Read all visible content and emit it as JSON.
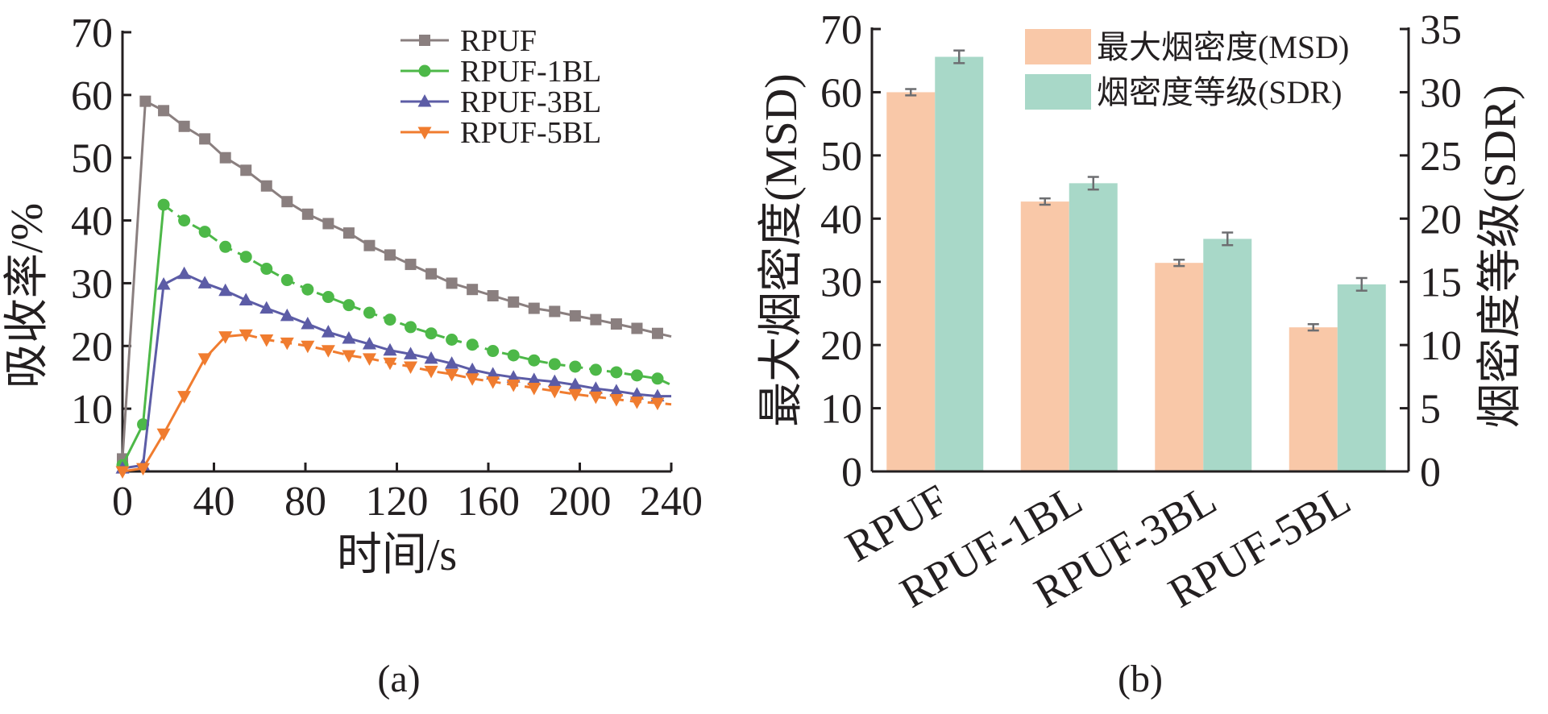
{
  "chart_data": [
    {
      "type": "line",
      "panel_label": "(a)",
      "title": "",
      "xlabel": "时间/s",
      "ylabel": "吸收率/%",
      "xlim": [
        0,
        240
      ],
      "ylim": [
        0,
        70
      ],
      "xticks": [
        0,
        40,
        80,
        120,
        160,
        200,
        240
      ],
      "yticks": [
        10,
        20,
        30,
        40,
        50,
        60,
        70
      ],
      "grid": false,
      "legend_position": "top-right",
      "series": [
        {
          "name": "RPUF",
          "color": "#8a7f7f",
          "marker": "square",
          "dashed_after_peak": false,
          "points": [
            [
              0,
              2
            ],
            [
              10,
              59
            ],
            [
              18,
              57.5
            ],
            [
              27,
              55
            ],
            [
              36,
              53
            ],
            [
              45,
              50
            ],
            [
              54,
              48
            ],
            [
              63,
              45.5
            ],
            [
              72,
              43
            ],
            [
              81,
              41
            ],
            [
              90,
              39.5
            ],
            [
              99,
              38
            ],
            [
              108,
              36
            ],
            [
              117,
              34.5
            ],
            [
              126,
              33
            ],
            [
              135,
              31.5
            ],
            [
              144,
              30
            ],
            [
              153,
              29
            ],
            [
              162,
              28
            ],
            [
              171,
              27
            ],
            [
              180,
              26
            ],
            [
              189,
              25.5
            ],
            [
              198,
              24.8
            ],
            [
              207,
              24.2
            ],
            [
              216,
              23.5
            ],
            [
              225,
              22.8
            ],
            [
              234,
              22
            ],
            [
              240,
              21.5
            ]
          ]
        },
        {
          "name": "RPUF-1BL",
          "color": "#4db848",
          "marker": "circle",
          "dashed_after_peak": true,
          "points": [
            [
              0,
              1
            ],
            [
              9,
              7.5
            ],
            [
              18,
              42.5
            ],
            [
              27,
              40
            ],
            [
              36,
              38.2
            ],
            [
              45,
              35.8
            ],
            [
              54,
              34.2
            ],
            [
              63,
              32.3
            ],
            [
              72,
              30.5
            ],
            [
              81,
              29
            ],
            [
              90,
              27.8
            ],
            [
              99,
              26.5
            ],
            [
              108,
              25.3
            ],
            [
              117,
              24.2
            ],
            [
              126,
              23
            ],
            [
              135,
              22
            ],
            [
              144,
              21
            ],
            [
              153,
              20.2
            ],
            [
              162,
              19.2
            ],
            [
              171,
              18.5
            ],
            [
              180,
              17.7
            ],
            [
              189,
              17.1
            ],
            [
              198,
              16.7
            ],
            [
              207,
              16.2
            ],
            [
              216,
              15.8
            ],
            [
              225,
              15.3
            ],
            [
              234,
              14.8
            ],
            [
              240,
              13.8
            ]
          ]
        },
        {
          "name": "RPUF-3BL",
          "color": "#5c5ca6",
          "marker": "triangle-up",
          "dashed_after_peak": false,
          "points": [
            [
              0,
              0.5
            ],
            [
              9,
              1
            ],
            [
              18,
              29.8
            ],
            [
              27,
              31.5
            ],
            [
              36,
              30
            ],
            [
              45,
              28.8
            ],
            [
              54,
              27.3
            ],
            [
              63,
              26
            ],
            [
              72,
              24.8
            ],
            [
              81,
              23.5
            ],
            [
              90,
              22.2
            ],
            [
              99,
              21.2
            ],
            [
              108,
              20.3
            ],
            [
              117,
              19.3
            ],
            [
              126,
              18.7
            ],
            [
              135,
              18
            ],
            [
              144,
              17.2
            ],
            [
              153,
              16.2
            ],
            [
              162,
              15.5
            ],
            [
              171,
              15
            ],
            [
              180,
              14.6
            ],
            [
              189,
              14.3
            ],
            [
              198,
              13.8
            ],
            [
              207,
              13.2
            ],
            [
              216,
              12.8
            ],
            [
              225,
              12.3
            ],
            [
              234,
              12
            ],
            [
              240,
              12
            ]
          ]
        },
        {
          "name": "RPUF-5BL",
          "color": "#f07c2f",
          "marker": "triangle-down",
          "dashed_after_peak": true,
          "points": [
            [
              0,
              0
            ],
            [
              9,
              0.5
            ],
            [
              18,
              6
            ],
            [
              27,
              12
            ],
            [
              36,
              18
            ],
            [
              45,
              21.5
            ],
            [
              54,
              21.8
            ],
            [
              63,
              21
            ],
            [
              72,
              20.5
            ],
            [
              81,
              20
            ],
            [
              90,
              19.3
            ],
            [
              99,
              18.5
            ],
            [
              108,
              18
            ],
            [
              117,
              17.3
            ],
            [
              126,
              16.7
            ],
            [
              135,
              16
            ],
            [
              144,
              15.5
            ],
            [
              153,
              14.8
            ],
            [
              162,
              14.3
            ],
            [
              171,
              13.8
            ],
            [
              180,
              13.3
            ],
            [
              189,
              12.8
            ],
            [
              198,
              12.3
            ],
            [
              207,
              11.9
            ],
            [
              216,
              11.5
            ],
            [
              225,
              11.1
            ],
            [
              234,
              10.9
            ],
            [
              240,
              10.7
            ]
          ]
        }
      ]
    },
    {
      "type": "bar",
      "panel_label": "(b)",
      "title": "",
      "categories": [
        "RPUF",
        "RPUF-1BL",
        "RPUF-3BL",
        "RPUF-5BL"
      ],
      "ylabel": "最大烟密度(MSD)",
      "y2label": "烟密度等级(SDR)",
      "ylim": [
        0,
        70
      ],
      "y2lim": [
        0,
        35
      ],
      "yticks": [
        0,
        10,
        20,
        30,
        40,
        50,
        60,
        70
      ],
      "y2ticks": [
        0,
        5,
        10,
        15,
        20,
        25,
        30,
        35
      ],
      "grid": false,
      "legend_position": "top-right",
      "series": [
        {
          "name": "最大烟密度(MSD)",
          "axis": "left",
          "color": "#f9c8a8",
          "values": [
            60,
            42.7,
            33,
            22.8
          ],
          "errors": [
            0.5,
            0.5,
            0.5,
            0.5
          ]
        },
        {
          "name": "烟密度等级(SDR)",
          "axis": "right",
          "color": "#a8d8c8",
          "values": [
            32.8,
            22.8,
            18.4,
            14.8
          ],
          "errors": [
            0.5,
            0.5,
            0.5,
            0.5
          ]
        }
      ]
    }
  ]
}
